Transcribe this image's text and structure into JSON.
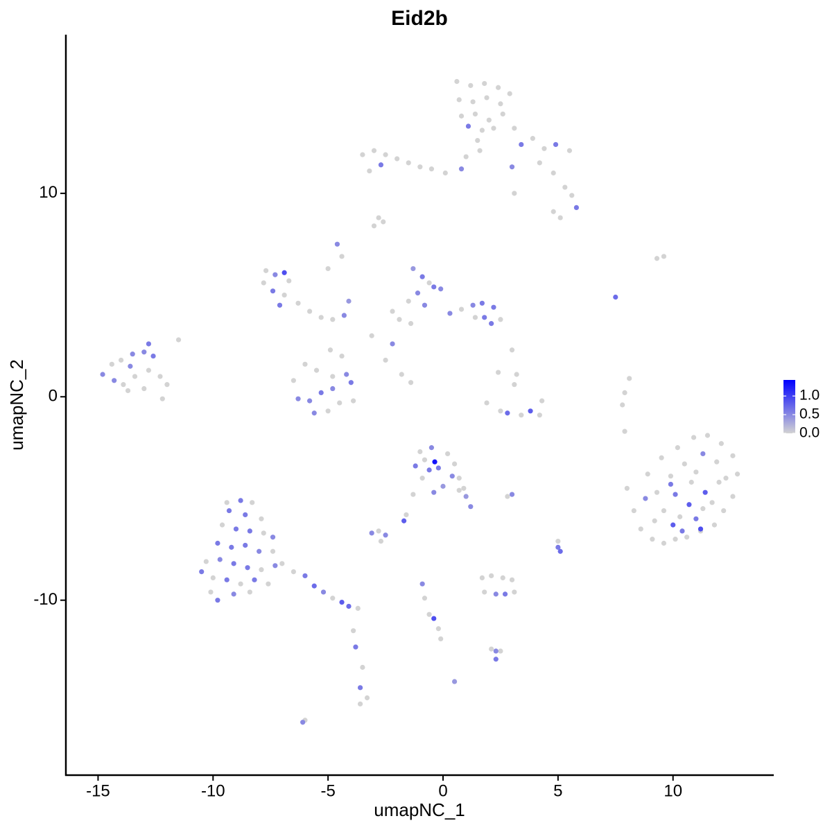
{
  "chart_data": {
    "type": "scatter",
    "title": "Eid2b",
    "x_label": "umapNC_1",
    "y_label": "umapNC_2",
    "xlim": [
      -16.4,
      14.35
    ],
    "ylim": [
      -18.6,
      17.8
    ],
    "xticks": [
      -15,
      -10,
      -5,
      0,
      5,
      10
    ],
    "yticks": [
      -10,
      0,
      10
    ],
    "low_color": "#d3d3d3",
    "high_color": "#0000ff",
    "color_lim": [
      0,
      1.43
    ],
    "color_ticks": [
      {
        "value": 0,
        "label": "0.0"
      },
      {
        "value": 0.5,
        "label": "0.5"
      },
      {
        "value": 1,
        "label": "1.0"
      }
    ],
    "x": [
      0.6,
      1.2,
      1.8,
      2.4,
      2.9,
      0.7,
      1.3,
      1.9,
      2.5,
      0.8,
      1.4,
      2.0,
      2.6,
      1.1,
      1.7,
      2.2,
      1.5,
      1.6,
      1.0,
      0.8,
      -3.5,
      -3.0,
      -2.5,
      -2.7,
      -3.2,
      -2.0,
      -1.5,
      -1.0,
      -0.5,
      0.1,
      3.1,
      3.4,
      3.9,
      4.4,
      4.9,
      5.5,
      3.0,
      4.2,
      4.8,
      5.3,
      5.6,
      5.8,
      4.8,
      5.1,
      3.1,
      -2.8,
      -2.6,
      -3.0,
      -7.7,
      -7.3,
      -6.9,
      -7.8,
      -7.4,
      -6.9,
      -7.1,
      -6.7,
      -6.3,
      -5.8,
      -5.3,
      -4.8,
      -4.3,
      -4.1,
      -4.6,
      -4.4,
      -5.0,
      -1.3,
      -0.9,
      -0.6,
      -1.1,
      -0.4,
      -0.1,
      -1.5,
      -0.8,
      -2.2,
      -1.9,
      -1.4,
      0.3,
      0.8,
      1.3,
      1.7,
      2.2,
      2.5,
      1.8,
      2.1,
      1.4,
      -2.2,
      -3.1,
      -2.5,
      -1.8,
      -1.4,
      -14.8,
      -14.4,
      -14.0,
      -13.5,
      -13.0,
      -12.6,
      -14.3,
      -13.9,
      -13.4,
      -13.6,
      -12.8,
      -12.3,
      -12.0,
      -13.0,
      -12.2,
      -13.7,
      -12.8,
      -11.5,
      -6.5,
      -6.0,
      -5.5,
      -4.8,
      -4.2,
      -4.0,
      -6.3,
      -5.8,
      -5.3,
      -4.8,
      -4.5,
      -5.6,
      -5.0,
      -3.9,
      -4.9,
      -4.4,
      3.0,
      3.2,
      3.1,
      1.9,
      2.5,
      2.8,
      3.4,
      3.8,
      4.3,
      4.2,
      2.4,
      8.0,
      8.3,
      8.6,
      9.1,
      9.6,
      10.1,
      10.6,
      11.2,
      11.8,
      12.2,
      12.6,
      12.8,
      12.6,
      12.1,
      11.5,
      10.9,
      10.2,
      9.5,
      8.9,
      9.3,
      9.9,
      10.5,
      11.3,
      11.9,
      12.0,
      11.4,
      10.8,
      10.1,
      9.6,
      10.3,
      10.7,
      11.3,
      11.7,
      11.0,
      10.4,
      10.0,
      9.2,
      8.8,
      11.2,
      12.3,
      9.9,
      11.0,
      -1.0,
      -0.5,
      -0.36,
      -0.8,
      0.2,
      0.5,
      -1.2,
      -0.6,
      -0.2,
      0.4,
      -0.9,
      0.0,
      0.7,
      -0.4,
      0.9,
      1.0,
      1.2,
      0.7,
      -1.3,
      -1.6,
      -1.7,
      2.8,
      3.0,
      -9.4,
      -8.8,
      -8.3,
      -9.3,
      -8.6,
      -7.9,
      -9.6,
      -9.0,
      -8.4,
      -7.8,
      -7.4,
      -9.8,
      -9.2,
      -8.6,
      -8.0,
      -7.4,
      -10.3,
      -9.7,
      -9.1,
      -8.5,
      -7.9,
      -7.3,
      -10.5,
      -10.0,
      -9.4,
      -8.8,
      -8.2,
      -7.6,
      -10.1,
      -9.8,
      -9.1,
      -8.4,
      -7.0,
      -6.5,
      -6.0,
      -5.6,
      -5.2,
      -4.8,
      -4.4,
      -4.1,
      -3.7,
      -3.9,
      -3.8,
      -3.5,
      -3.6,
      -3.3,
      -3.6,
      1.7,
      2.1,
      2.6,
      3.0,
      1.8,
      2.3,
      2.7,
      3.1,
      -3.1,
      -2.8,
      -2.5,
      -2.7,
      5.0,
      5.0,
      5.1,
      -0.9,
      -0.8,
      -0.6,
      -0.4,
      -0.2,
      -0.1,
      2.1,
      2.3,
      2.5,
      2.3,
      -6.1,
      -6.0,
      0.5,
      9.3,
      9.6,
      7.5,
      8.1,
      7.9,
      7.8,
      7.9
    ],
    "y": [
      15.5,
      15.3,
      15.4,
      15.2,
      14.9,
      14.6,
      14.5,
      14.7,
      14.4,
      13.8,
      13.9,
      13.6,
      13.9,
      13.3,
      13.1,
      13.2,
      12.6,
      12.1,
      11.8,
      11.2,
      11.9,
      12.1,
      11.9,
      11.4,
      11.1,
      11.7,
      11.5,
      11.3,
      11.2,
      11.0,
      13.2,
      12.4,
      12.7,
      12.2,
      12.4,
      12.1,
      11.3,
      11.5,
      11.0,
      10.3,
      9.9,
      9.3,
      9.1,
      8.8,
      10.0,
      8.8,
      8.6,
      8.4,
      6.2,
      6.0,
      6.1,
      5.6,
      5.2,
      5.0,
      4.5,
      5.7,
      4.6,
      4.2,
      3.9,
      3.8,
      4.0,
      4.7,
      7.5,
      6.9,
      6.3,
      6.3,
      5.9,
      5.6,
      5.1,
      5.4,
      5.3,
      4.7,
      4.5,
      4.2,
      3.8,
      3.6,
      4.1,
      4.3,
      4.5,
      4.6,
      4.4,
      3.8,
      3.9,
      3.6,
      3.9,
      2.6,
      3.0,
      1.8,
      1.1,
      0.7,
      1.1,
      1.6,
      1.8,
      2.1,
      2.2,
      2.0,
      0.8,
      0.6,
      1.0,
      1.5,
      1.3,
      1.0,
      0.6,
      0.4,
      -0.1,
      0.3,
      2.6,
      2.8,
      0.8,
      1.6,
      1.3,
      1.0,
      1.1,
      0.7,
      -0.1,
      -0.2,
      0.2,
      0.4,
      -0.3,
      -0.8,
      -0.7,
      -0.2,
      2.3,
      2.0,
      2.3,
      1.1,
      0.6,
      -0.3,
      -0.7,
      -0.8,
      -0.9,
      -0.7,
      -0.2,
      -0.9,
      1.2,
      -4.5,
      -5.6,
      -6.5,
      -7.0,
      -7.2,
      -7.0,
      -6.9,
      -6.6,
      -6.3,
      -5.6,
      -4.9,
      -3.8,
      -2.9,
      -2.3,
      -1.9,
      -2.0,
      -2.5,
      -3.0,
      -3.8,
      -4.7,
      -3.9,
      -3.3,
      -2.8,
      -3.2,
      -4.2,
      -4.7,
      -4.2,
      -4.8,
      -5.6,
      -5.9,
      -5.3,
      -5.5,
      -5.2,
      -6.0,
      -6.6,
      -6.3,
      -6.1,
      -5.0,
      -6.5,
      -4.0,
      -4.3,
      -3.7,
      -2.7,
      -2.5,
      -3.2,
      -3.1,
      -2.8,
      -3.3,
      -3.4,
      -3.6,
      -3.5,
      -3.9,
      -4.0,
      -4.4,
      -4.0,
      -4.7,
      -4.5,
      -4.9,
      -5.4,
      -4.6,
      -4.8,
      -5.8,
      -6.1,
      -4.9,
      -4.8,
      -5.2,
      -5.1,
      -5.2,
      -5.6,
      -5.8,
      -6.0,
      -6.3,
      -6.5,
      -6.6,
      -6.7,
      -6.9,
      -7.2,
      -7.4,
      -7.3,
      -7.6,
      -7.6,
      -8.1,
      -8.0,
      -8.2,
      -8.4,
      -8.5,
      -8.3,
      -8.6,
      -8.9,
      -9.0,
      -9.2,
      -9.0,
      -9.2,
      -9.6,
      -10.0,
      -9.7,
      -9.6,
      -8.2,
      -8.6,
      -8.8,
      -9.3,
      -9.6,
      -9.9,
      -10.1,
      -10.3,
      -10.4,
      -11.5,
      -12.3,
      -13.3,
      -14.3,
      -14.8,
      -15.1,
      -8.9,
      -8.8,
      -8.9,
      -9.0,
      -9.6,
      -9.7,
      -9.7,
      -9.6,
      -6.7,
      -6.6,
      -6.8,
      -7.1,
      -7.1,
      -7.4,
      -7.6,
      -9.2,
      -9.9,
      -10.7,
      -10.9,
      -11.4,
      -11.9,
      -12.4,
      -12.5,
      -12.5,
      -12.9,
      -16.0,
      -15.9,
      -14.0,
      6.8,
      6.9,
      4.9,
      0.9,
      0.2,
      -0.4,
      -1.7
    ],
    "values": [
      0,
      0,
      0,
      0,
      0,
      0,
      0,
      0,
      0,
      0,
      0,
      0,
      0,
      0.6,
      0,
      0,
      0,
      0,
      0,
      0.5,
      0,
      0,
      0,
      0.6,
      0,
      0,
      0,
      0,
      0,
      0,
      0,
      0.6,
      0,
      0,
      0.6,
      0,
      0.5,
      0,
      0,
      0,
      0,
      0.6,
      0,
      0,
      0,
      0,
      0,
      0,
      0,
      0.5,
      0.9,
      0,
      0.6,
      0,
      0.6,
      0,
      0,
      0,
      0,
      0,
      0.5,
      0.4,
      0.5,
      0,
      0,
      0.4,
      0.6,
      0,
      0.5,
      0.6,
      0.5,
      0,
      0.5,
      0,
      0,
      0,
      0.5,
      0,
      0.5,
      0.6,
      0.6,
      0,
      0.6,
      0.6,
      0,
      0.5,
      0,
      0,
      0,
      0,
      0.5,
      0,
      0,
      0.5,
      0.5,
      0.6,
      0.5,
      0,
      0,
      0.5,
      0,
      0,
      0,
      0,
      0,
      0,
      0.6,
      0,
      0,
      0,
      0,
      0,
      0.5,
      0.6,
      0.5,
      0.5,
      0.6,
      0.5,
      0,
      0.5,
      0,
      0,
      0,
      0,
      0,
      0,
      0,
      0,
      0,
      0.7,
      0,
      0.8,
      0,
      0,
      0,
      0,
      0,
      0,
      0,
      0,
      0,
      0,
      0,
      0,
      0,
      0,
      0,
      0,
      0,
      0,
      0,
      0,
      0,
      0,
      0,
      0,
      0,
      0.5,
      0,
      0,
      0.8,
      0,
      0.6,
      0,
      0,
      0.8,
      0,
      0,
      0.6,
      0.6,
      0.8,
      0,
      0.5,
      0.9,
      0,
      0.6,
      0,
      0,
      0.5,
      1.3,
      0,
      0,
      0,
      0.6,
      0.6,
      0.6,
      0.5,
      0,
      0.4,
      0,
      0.5,
      0,
      0.4,
      0.5,
      0,
      0,
      0,
      0.8,
      0,
      0.5,
      0,
      0.6,
      0,
      0.6,
      0.6,
      0,
      0,
      0.6,
      0.6,
      0,
      0.5,
      0.6,
      0.6,
      0.6,
      0.5,
      0,
      0,
      0.5,
      0.6,
      0.6,
      0,
      0.5,
      0.6,
      0,
      0.6,
      0,
      0.6,
      0,
      0,
      0.6,
      0.5,
      0,
      0,
      0,
      0.6,
      0.7,
      0.5,
      0,
      0.8,
      0.7,
      0,
      0,
      0.6,
      0,
      0.6,
      0,
      0,
      0,
      0,
      0,
      0,
      0,
      0.5,
      0.6,
      0,
      0.5,
      0,
      0.5,
      0,
      0,
      0.6,
      0.7,
      0.5,
      0,
      0,
      0.9,
      0,
      0,
      0,
      0.5,
      0,
      0.6,
      0.5,
      0,
      0.4,
      0,
      0,
      0.7,
      0,
      0,
      0,
      0
    ]
  }
}
